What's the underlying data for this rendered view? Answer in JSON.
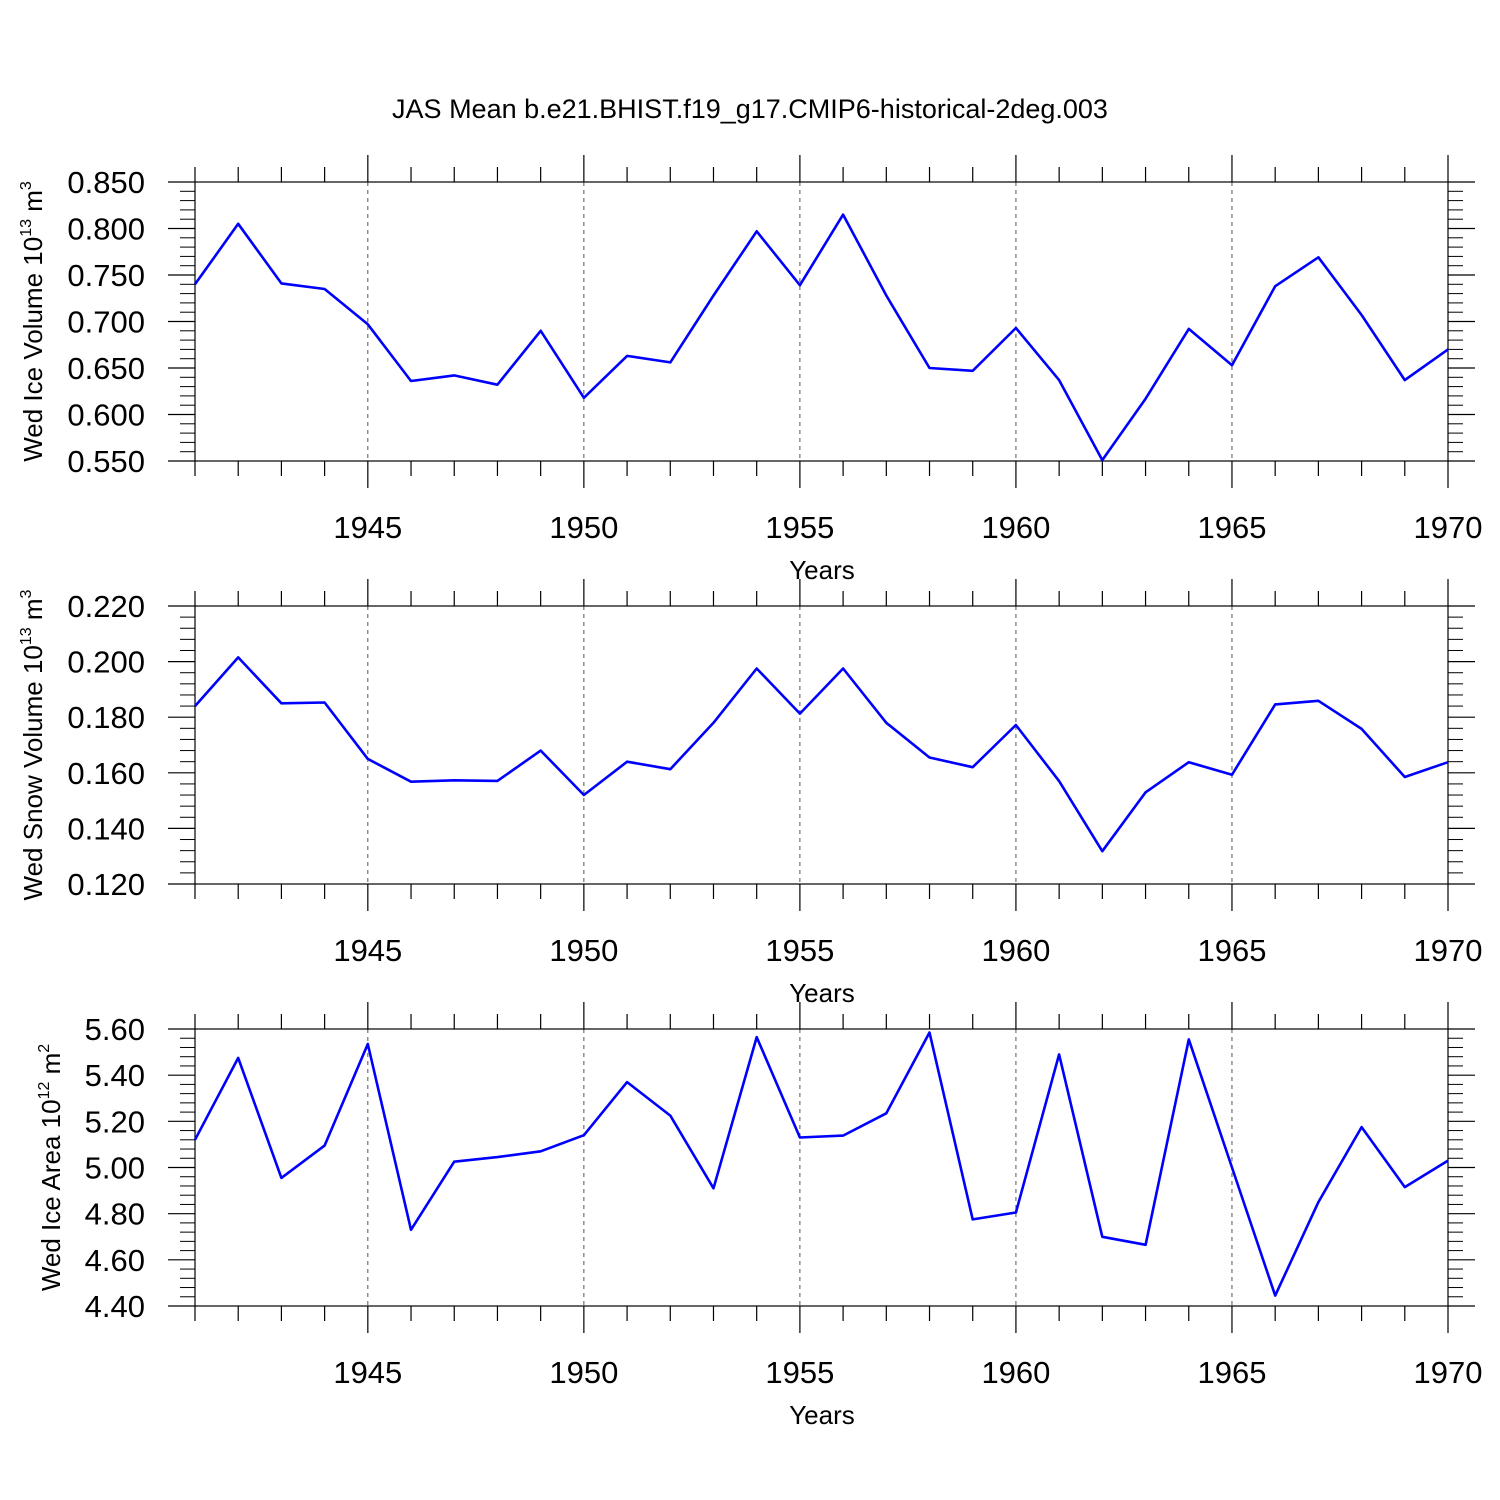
{
  "figure_title": "JAS Mean b.e21.BHIST.f19_g17.CMIP6-historical-2deg.003",
  "colors": {
    "line": "#0000ff",
    "axis": "#000000",
    "grid": "#555555"
  },
  "chart_data": [
    {
      "type": "line",
      "xlabel": "Years",
      "ylabel_parts": [
        "Wed Ice Volume 10",
        "13",
        " m",
        "3"
      ],
      "xlim": [
        1941,
        1970
      ],
      "ylim": [
        0.55,
        0.85
      ],
      "x_ticks": [
        1945,
        1950,
        1955,
        1960,
        1965,
        1970
      ],
      "y_ticks": [
        "0.550",
        "0.600",
        "0.650",
        "0.700",
        "0.750",
        "0.800",
        "0.850"
      ],
      "grid": "vertical dashed at labeled years",
      "x": [
        1941,
        1942,
        1943,
        1944,
        1945,
        1946,
        1947,
        1948,
        1949,
        1950,
        1951,
        1952,
        1953,
        1954,
        1955,
        1956,
        1957,
        1958,
        1959,
        1960,
        1961,
        1962,
        1963,
        1964,
        1965,
        1966,
        1967,
        1968,
        1969,
        1970
      ],
      "values": [
        0.74,
        0.805,
        0.741,
        0.735,
        0.697,
        0.636,
        0.642,
        0.632,
        0.69,
        0.618,
        0.663,
        0.656,
        0.728,
        0.797,
        0.739,
        0.815,
        0.728,
        0.65,
        0.647,
        0.693,
        0.637,
        0.551,
        0.617,
        0.692,
        0.653,
        0.738,
        0.769,
        0.707,
        0.637,
        0.67
      ]
    },
    {
      "type": "line",
      "xlabel": "Years",
      "ylabel_parts": [
        "Wed Snow Volume 10",
        "13",
        " m",
        "3"
      ],
      "xlim": [
        1941,
        1970
      ],
      "ylim": [
        0.12,
        0.22
      ],
      "x_ticks": [
        1945,
        1950,
        1955,
        1960,
        1965,
        1970
      ],
      "y_ticks": [
        "0.120",
        "0.140",
        "0.160",
        "0.180",
        "0.200",
        "0.220"
      ],
      "grid": "vertical dashed at labeled years",
      "x": [
        1941,
        1942,
        1943,
        1944,
        1945,
        1946,
        1947,
        1948,
        1949,
        1950,
        1951,
        1952,
        1953,
        1954,
        1955,
        1956,
        1957,
        1958,
        1959,
        1960,
        1961,
        1962,
        1963,
        1964,
        1965,
        1966,
        1967,
        1968,
        1969,
        1970
      ],
      "values": [
        0.184,
        0.2015,
        0.185,
        0.1853,
        0.165,
        0.1568,
        0.1573,
        0.1571,
        0.168,
        0.152,
        0.164,
        0.1613,
        0.178,
        0.1975,
        0.1813,
        0.1975,
        0.178,
        0.1655,
        0.162,
        0.1772,
        0.157,
        0.1318,
        0.153,
        0.1638,
        0.1593,
        0.1846,
        0.1859,
        0.1758,
        0.1585,
        0.1638
      ]
    },
    {
      "type": "line",
      "xlabel": "Years",
      "ylabel_parts": [
        "Wed Ice Area 10",
        "12",
        " m",
        "2"
      ],
      "xlim": [
        1941,
        1970
      ],
      "ylim": [
        4.4,
        5.6
      ],
      "x_ticks": [
        1945,
        1950,
        1955,
        1960,
        1965,
        1970
      ],
      "y_ticks": [
        "4.40",
        "4.60",
        "4.80",
        "5.00",
        "5.20",
        "5.40",
        "5.60"
      ],
      "grid": "vertical dashed at labeled years",
      "x": [
        1941,
        1942,
        1943,
        1944,
        1945,
        1946,
        1947,
        1948,
        1949,
        1950,
        1951,
        1952,
        1953,
        1954,
        1955,
        1956,
        1957,
        1958,
        1959,
        1960,
        1961,
        1962,
        1963,
        1964,
        1965,
        1966,
        1967,
        1968,
        1969,
        1970
      ],
      "values": [
        5.12,
        5.475,
        4.955,
        5.095,
        5.535,
        4.73,
        5.025,
        5.045,
        5.07,
        5.14,
        5.37,
        5.225,
        4.91,
        5.565,
        5.13,
        5.138,
        5.235,
        5.585,
        4.775,
        4.805,
        5.49,
        4.7,
        4.665,
        5.555,
        5.0,
        4.445,
        4.85,
        5.175,
        4.915,
        5.03
      ]
    }
  ]
}
